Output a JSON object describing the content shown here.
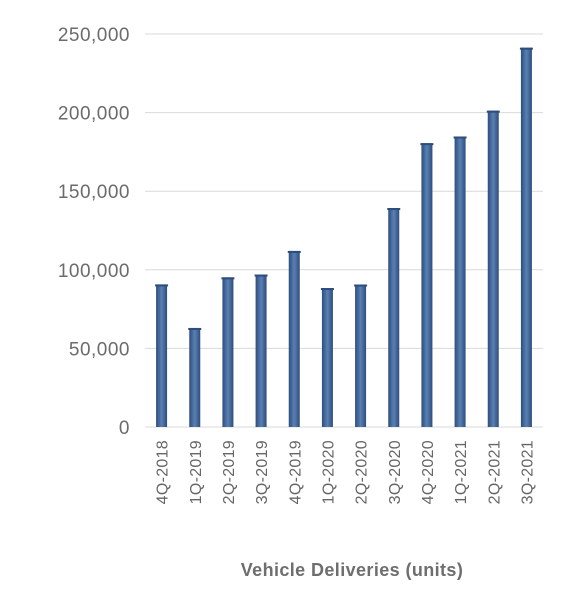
{
  "chart_data": {
    "type": "bar",
    "title": "",
    "xlabel": "Vehicle Deliveries (units)",
    "ylabel": "",
    "categories": [
      "4Q-2018",
      "1Q-2019",
      "2Q-2019",
      "3Q-2019",
      "4Q-2019",
      "1Q-2020",
      "2Q-2020",
      "3Q-2020",
      "4Q-2020",
      "1Q-2021",
      "2Q-2021",
      "3Q-2021"
    ],
    "values": [
      90700,
      63000,
      95200,
      97000,
      112000,
      88400,
      90650,
      139300,
      180570,
      184800,
      201250,
      241300
    ],
    "ylim": [
      0,
      250000
    ],
    "yticks": [
      0,
      50000,
      100000,
      150000,
      200000,
      250000
    ],
    "ytick_labels": [
      "0",
      "50,000",
      "100,000",
      "150,000",
      "200,000",
      "250,000"
    ],
    "grid": true,
    "legend": "none",
    "colors": {
      "bar_edge": "#2d4d7c",
      "bar_center": "#5a80b3",
      "grid": "#d9d9d9",
      "text": "#6b6b6b"
    }
  }
}
